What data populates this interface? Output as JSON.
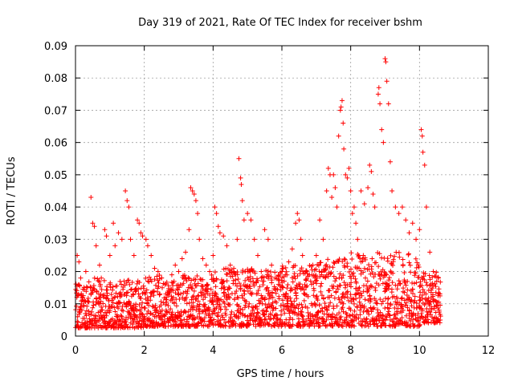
{
  "chart_data": {
    "type": "scatter",
    "title": "Day 319 of 2021, Rate Of TEC Index for receiver bshm",
    "xlabel": "GPS time / hours",
    "ylabel": "ROTI / TECUs",
    "xlim": [
      0,
      12
    ],
    "ylim": [
      0,
      0.09
    ],
    "xticks": [
      0,
      2,
      4,
      6,
      8,
      10,
      12
    ],
    "xtick_labels": [
      "0",
      "2",
      "4",
      "6",
      "8",
      "10",
      "12"
    ],
    "yticks": [
      0,
      0.01,
      0.02,
      0.03,
      0.04,
      0.05,
      0.06,
      0.07,
      0.08,
      0.09
    ],
    "ytick_labels": [
      "0",
      "0.01",
      "0.02",
      "0.03",
      "0.04",
      "0.05",
      "0.06",
      "0.07",
      "0.08",
      "0.09"
    ],
    "grid": true,
    "marker": "+",
    "color": "#ff0000",
    "series": [
      {
        "name": "ROTI",
        "points": [
          [
            0.05,
            0.025
          ],
          [
            0.1,
            0.023
          ],
          [
            0.15,
            0.018
          ],
          [
            0.2,
            0.012
          ],
          [
            0.3,
            0.02
          ],
          [
            0.35,
            0.015
          ],
          [
            0.45,
            0.043
          ],
          [
            0.5,
            0.035
          ],
          [
            0.55,
            0.034
          ],
          [
            0.6,
            0.028
          ],
          [
            0.7,
            0.022
          ],
          [
            0.75,
            0.018
          ],
          [
            0.85,
            0.033
          ],
          [
            0.9,
            0.031
          ],
          [
            1.0,
            0.025
          ],
          [
            1.1,
            0.035
          ],
          [
            1.15,
            0.028
          ],
          [
            1.25,
            0.032
          ],
          [
            1.35,
            0.03
          ],
          [
            1.45,
            0.045
          ],
          [
            1.5,
            0.042
          ],
          [
            1.55,
            0.04
          ],
          [
            1.6,
            0.03
          ],
          [
            1.7,
            0.025
          ],
          [
            1.8,
            0.036
          ],
          [
            1.85,
            0.035
          ],
          [
            1.9,
            0.032
          ],
          [
            1.95,
            0.031
          ],
          [
            2.05,
            0.03
          ],
          [
            2.1,
            0.028
          ],
          [
            2.2,
            0.025
          ],
          [
            2.3,
            0.021
          ],
          [
            2.4,
            0.02
          ],
          [
            2.5,
            0.018
          ],
          [
            2.6,
            0.016
          ],
          [
            2.7,
            0.014
          ],
          [
            2.8,
            0.019
          ],
          [
            2.9,
            0.022
          ],
          [
            3.0,
            0.02
          ],
          [
            3.1,
            0.024
          ],
          [
            3.2,
            0.026
          ],
          [
            3.3,
            0.033
          ],
          [
            3.35,
            0.046
          ],
          [
            3.4,
            0.045
          ],
          [
            3.45,
            0.044
          ],
          [
            3.5,
            0.042
          ],
          [
            3.55,
            0.038
          ],
          [
            3.6,
            0.03
          ],
          [
            3.7,
            0.024
          ],
          [
            3.8,
            0.022
          ],
          [
            3.9,
            0.02
          ],
          [
            4.0,
            0.025
          ],
          [
            4.05,
            0.04
          ],
          [
            4.1,
            0.038
          ],
          [
            4.15,
            0.034
          ],
          [
            4.2,
            0.032
          ],
          [
            4.3,
            0.031
          ],
          [
            4.4,
            0.028
          ],
          [
            4.5,
            0.022
          ],
          [
            4.6,
            0.02
          ],
          [
            4.7,
            0.03
          ],
          [
            4.75,
            0.055
          ],
          [
            4.8,
            0.049
          ],
          [
            4.82,
            0.047
          ],
          [
            4.85,
            0.042
          ],
          [
            4.9,
            0.036
          ],
          [
            5.0,
            0.038
          ],
          [
            5.1,
            0.036
          ],
          [
            5.2,
            0.03
          ],
          [
            5.3,
            0.025
          ],
          [
            5.4,
            0.02
          ],
          [
            5.5,
            0.033
          ],
          [
            5.6,
            0.03
          ],
          [
            5.7,
            0.022
          ],
          [
            5.8,
            0.018
          ],
          [
            5.9,
            0.016
          ],
          [
            6.0,
            0.02
          ],
          [
            6.1,
            0.019
          ],
          [
            6.2,
            0.023
          ],
          [
            6.3,
            0.027
          ],
          [
            6.4,
            0.035
          ],
          [
            6.45,
            0.038
          ],
          [
            6.5,
            0.036
          ],
          [
            6.55,
            0.03
          ],
          [
            6.6,
            0.025
          ],
          [
            6.7,
            0.02
          ],
          [
            6.8,
            0.019
          ],
          [
            6.9,
            0.022
          ],
          [
            7.0,
            0.025
          ],
          [
            7.1,
            0.036
          ],
          [
            7.2,
            0.03
          ],
          [
            7.3,
            0.045
          ],
          [
            7.35,
            0.052
          ],
          [
            7.4,
            0.05
          ],
          [
            7.45,
            0.043
          ],
          [
            7.5,
            0.05
          ],
          [
            7.55,
            0.046
          ],
          [
            7.6,
            0.04
          ],
          [
            7.65,
            0.062
          ],
          [
            7.7,
            0.07
          ],
          [
            7.72,
            0.071
          ],
          [
            7.75,
            0.073
          ],
          [
            7.78,
            0.066
          ],
          [
            7.8,
            0.058
          ],
          [
            7.85,
            0.05
          ],
          [
            7.9,
            0.049
          ],
          [
            7.95,
            0.052
          ],
          [
            8.0,
            0.045
          ],
          [
            8.05,
            0.038
          ],
          [
            8.1,
            0.04
          ],
          [
            8.15,
            0.035
          ],
          [
            8.2,
            0.03
          ],
          [
            8.3,
            0.045
          ],
          [
            8.4,
            0.041
          ],
          [
            8.5,
            0.046
          ],
          [
            8.55,
            0.053
          ],
          [
            8.6,
            0.051
          ],
          [
            8.65,
            0.044
          ],
          [
            8.7,
            0.04
          ],
          [
            8.8,
            0.075
          ],
          [
            8.82,
            0.077
          ],
          [
            8.85,
            0.072
          ],
          [
            8.9,
            0.064
          ],
          [
            8.95,
            0.06
          ],
          [
            9.0,
            0.086
          ],
          [
            9.02,
            0.085
          ],
          [
            9.05,
            0.079
          ],
          [
            9.1,
            0.072
          ],
          [
            9.15,
            0.054
          ],
          [
            9.2,
            0.045
          ],
          [
            9.3,
            0.04
          ],
          [
            9.4,
            0.038
          ],
          [
            9.5,
            0.04
          ],
          [
            9.6,
            0.036
          ],
          [
            9.7,
            0.032
          ],
          [
            9.8,
            0.035
          ],
          [
            9.9,
            0.03
          ],
          [
            10.0,
            0.033
          ],
          [
            10.05,
            0.064
          ],
          [
            10.08,
            0.062
          ],
          [
            10.1,
            0.057
          ],
          [
            10.15,
            0.053
          ],
          [
            10.2,
            0.04
          ],
          [
            10.3,
            0.026
          ],
          [
            10.4,
            0.02
          ],
          [
            10.5,
            0.017
          ],
          [
            10.55,
            0.018
          ]
        ]
      }
    ],
    "dense_band": {
      "x_range": [
        0,
        10.6
      ],
      "y_ranges": [
        [
          0,
          0.02,
          0.0025,
          0.018
        ],
        [
          1,
          0.02,
          0.0025,
          0.018
        ],
        [
          2,
          0.02,
          0.003,
          0.019
        ],
        [
          3,
          0.02,
          0.003,
          0.019
        ],
        [
          4,
          0.02,
          0.003,
          0.021
        ],
        [
          5,
          0.02,
          0.003,
          0.021
        ],
        [
          6,
          0.02,
          0.003,
          0.022
        ],
        [
          7,
          0.02,
          0.003,
          0.024
        ],
        [
          8,
          0.02,
          0.003,
          0.026
        ],
        [
          9,
          0.02,
          0.003,
          0.026
        ],
        [
          10,
          0.6,
          0.004,
          0.02
        ]
      ]
    }
  }
}
